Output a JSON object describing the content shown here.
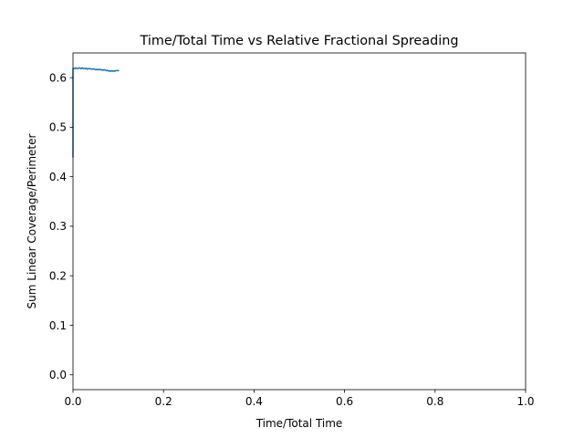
{
  "chart_data": {
    "type": "line",
    "title": "Time/Total Time vs Relative Fractional Spreading",
    "xlabel": "Time/Total Time",
    "ylabel": "Sum Linear Coverage/Perimeter",
    "xlim": [
      0.0,
      1.0
    ],
    "ylim": [
      -0.03,
      0.65
    ],
    "xticks": [
      0.0,
      0.2,
      0.4,
      0.6,
      0.8,
      1.0
    ],
    "xtick_labels": [
      "0.0",
      "0.2",
      "0.4",
      "0.6",
      "0.8",
      "1.0"
    ],
    "yticks": [
      0.0,
      0.1,
      0.2,
      0.3,
      0.4,
      0.5,
      0.6
    ],
    "ytick_labels": [
      "0.0",
      "0.1",
      "0.2",
      "0.3",
      "0.4",
      "0.5",
      "0.6"
    ],
    "grid": false,
    "series": [
      {
        "color": "#1f77b4",
        "x": [
          0.0,
          0.0,
          0.002,
          0.004,
          0.006,
          0.008,
          0.01,
          0.012,
          0.014,
          0.016,
          0.018,
          0.02,
          0.022,
          0.024,
          0.026,
          0.028,
          0.03,
          0.032,
          0.034,
          0.036,
          0.038,
          0.04,
          0.042,
          0.044,
          0.046,
          0.048,
          0.05,
          0.052,
          0.054,
          0.056,
          0.058,
          0.06,
          0.062,
          0.064,
          0.066,
          0.068,
          0.07,
          0.072,
          0.074,
          0.076,
          0.078,
          0.08,
          0.082,
          0.084,
          0.086,
          0.088,
          0.09,
          0.092,
          0.094,
          0.096,
          0.098,
          0.1
        ],
        "y": [
          0.44,
          0.618,
          0.619,
          0.618,
          0.62,
          0.619,
          0.618,
          0.619,
          0.62,
          0.619,
          0.618,
          0.62,
          0.619,
          0.618,
          0.619,
          0.618,
          0.619,
          0.617,
          0.618,
          0.619,
          0.618,
          0.617,
          0.618,
          0.617,
          0.618,
          0.617,
          0.616,
          0.617,
          0.616,
          0.617,
          0.616,
          0.617,
          0.616,
          0.615,
          0.616,
          0.615,
          0.616,
          0.615,
          0.614,
          0.615,
          0.614,
          0.613,
          0.614,
          0.613,
          0.614,
          0.613,
          0.614,
          0.613,
          0.614,
          0.614,
          0.615,
          0.614
        ]
      }
    ]
  }
}
